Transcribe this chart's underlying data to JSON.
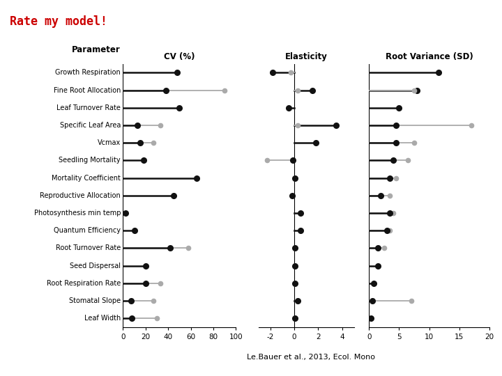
{
  "title": "Rate my model!",
  "title_color": "#cc0000",
  "citation": "Le.Bauer et al., 2013, Ecol. Mono",
  "parameters": [
    "Growth Respiration",
    "Fine Root Allocation",
    "Leaf Turnover Rate",
    "Specific Leaf Area",
    "Vcmax",
    "Seedling Mortality",
    "Mortality Coefficient",
    "Reproductive Allocation",
    "Photosynthesis min temp",
    "Quantum Efficiency",
    "Root Turnover Rate",
    "Seed Dispersal",
    "Root Respiration Rate",
    "Stomatal Slope",
    "Leaf Width"
  ],
  "cv_black": [
    48,
    38,
    50,
    13,
    15,
    18,
    65,
    45,
    2,
    10,
    42,
    20,
    20,
    7,
    8
  ],
  "cv_gray": [
    48,
    90,
    50,
    33,
    27,
    18,
    65,
    45,
    2,
    10,
    58,
    20,
    33,
    27,
    30
  ],
  "elast_black": [
    -1.8,
    1.5,
    -0.5,
    3.5,
    1.8,
    -0.1,
    0.05,
    -0.2,
    0.5,
    0.5,
    0.05,
    0.05,
    0.05,
    0.3,
    0.05
  ],
  "elast_gray": [
    -0.3,
    0.3,
    -0.5,
    0.3,
    1.8,
    -2.3,
    0.05,
    -0.2,
    0.5,
    0.5,
    0.05,
    0.05,
    0.05,
    0.3,
    0.05
  ],
  "rv_black": [
    11.5,
    8.0,
    5.0,
    4.5,
    4.5,
    4.0,
    3.5,
    2.0,
    3.5,
    3.0,
    1.5,
    1.5,
    0.8,
    0.5,
    0.3
  ],
  "rv_gray": [
    11.5,
    7.5,
    5.0,
    17.0,
    7.5,
    6.5,
    4.5,
    3.5,
    4.0,
    3.5,
    2.5,
    1.5,
    0.8,
    7.0,
    0.3
  ],
  "cv_xlim": [
    0,
    100
  ],
  "cv_xticks": [
    0,
    20,
    40,
    60,
    80,
    100
  ],
  "elast_xlim": [
    -3,
    5
  ],
  "elast_xticks": [
    -2,
    0,
    2,
    4
  ],
  "rv_xlim": [
    0,
    20
  ],
  "rv_xticks": [
    0,
    5,
    10,
    15,
    20
  ],
  "black_color": "#111111",
  "gray_color": "#aaaaaa"
}
